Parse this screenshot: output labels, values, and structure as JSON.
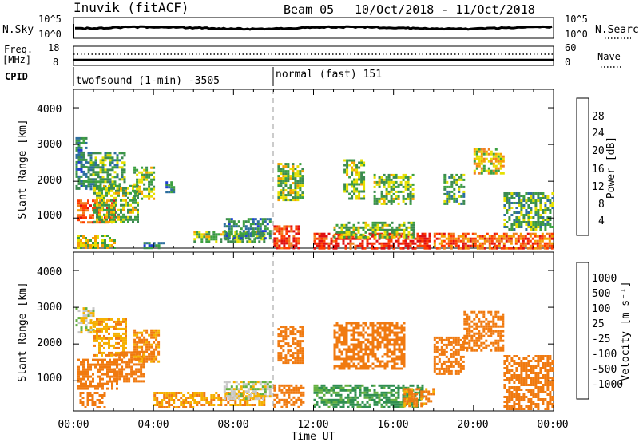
{
  "header": {
    "station": "Inuvik (fitACF)",
    "beam": "Beam 05",
    "date_range": "10/Oct/2018 - 11/Oct/2018"
  },
  "noise_panel": {
    "left_label": "N.Sky",
    "right_label": "N.Search",
    "left_ticks": [
      "10^5",
      "10^0"
    ],
    "right_ticks": [
      "10^5",
      "10^0"
    ]
  },
  "freq_panel": {
    "left_label_1": "Freq.",
    "left_label_2": "[MHz]",
    "right_label": "Nave",
    "left_ticks": [
      "18",
      "8"
    ],
    "right_ticks": [
      "60",
      "0"
    ]
  },
  "cpid": {
    "label": "CPID",
    "mode_1": "twofsound (1-min) -3505",
    "mode_2": "normal (fast) 151"
  },
  "axes": {
    "ylabel": "Slant Range [km]",
    "xlabel": "Time UT",
    "yticks": [
      "4000",
      "3000",
      "2000",
      "1000"
    ],
    "xticks": [
      "00:00",
      "04:00",
      "08:00",
      "12:00",
      "16:00",
      "20:00",
      "00:00"
    ]
  },
  "colorbars": {
    "power": {
      "label": "Power [dB]",
      "ticks": [
        "28",
        "24",
        "20",
        "16",
        "12",
        "8",
        "4"
      ],
      "colors": [
        "#e01010",
        "#ff3b00",
        "#f08020",
        "#f5a000",
        "#e6e000",
        "#3ca040",
        "#3c8a50",
        "#2c6e9e",
        "#1e3fd0",
        "#0000ff"
      ]
    },
    "velocity": {
      "label": "Velocity [m s⁻¹]",
      "ticks": [
        "1000",
        "500",
        "100",
        "25",
        "-25",
        "-100",
        "-500",
        "-1000"
      ],
      "colors": [
        "#2038c0",
        "#2f6a9e",
        "#2f8f50",
        "#64b040",
        "#c8c8c8",
        "#f5b000",
        "#f07a10",
        "#e04010",
        "#ff0000"
      ]
    }
  },
  "chart_data": [
    {
      "type": "heatmap",
      "title": "Power",
      "xlabel": "Time UT",
      "ylabel": "Slant Range [km]",
      "xlim_hours": [
        0,
        24
      ],
      "ylim_km": [
        180,
        4500
      ],
      "colorbar_label": "Power [dB]",
      "colorbar_range_db": [
        0,
        30
      ],
      "regions": [
        {
          "t0": 0.1,
          "t1": 0.6,
          "r0": 1800,
          "r1": 3200,
          "db": 10
        },
        {
          "t0": 0.2,
          "t1": 2.1,
          "r0": 850,
          "r1": 1500,
          "db": 24
        },
        {
          "t0": 0.7,
          "t1": 2.6,
          "r0": 1800,
          "r1": 2800,
          "db": 12
        },
        {
          "t0": 1.0,
          "t1": 3.2,
          "r0": 900,
          "r1": 1900,
          "db": 14
        },
        {
          "t0": 0.2,
          "t1": 2.0,
          "r0": 200,
          "r1": 550,
          "db": 16
        },
        {
          "t0": 3.0,
          "t1": 4.0,
          "r0": 1500,
          "r1": 2400,
          "db": 14
        },
        {
          "t0": 3.5,
          "t1": 4.5,
          "r0": 200,
          "r1": 350,
          "db": 10
        },
        {
          "t0": 4.6,
          "t1": 5.0,
          "r0": 1700,
          "r1": 2000,
          "db": 10
        },
        {
          "t0": 6.0,
          "t1": 9.5,
          "r0": 350,
          "r1": 650,
          "db": 14
        },
        {
          "t0": 7.5,
          "t1": 9.8,
          "r0": 450,
          "r1": 1000,
          "db": 10
        },
        {
          "t0": 10.0,
          "t1": 11.2,
          "r0": 200,
          "r1": 800,
          "db": 26
        },
        {
          "t0": 10.2,
          "t1": 11.5,
          "r0": 1500,
          "r1": 2500,
          "db": 14
        },
        {
          "t0": 12.0,
          "t1": 17.8,
          "r0": 200,
          "r1": 600,
          "db": 28
        },
        {
          "t0": 13.0,
          "t1": 17.0,
          "r0": 500,
          "r1": 900,
          "db": 14
        },
        {
          "t0": 13.5,
          "t1": 14.5,
          "r0": 1500,
          "r1": 2600,
          "db": 14
        },
        {
          "t0": 15.0,
          "t1": 17.0,
          "r0": 1400,
          "r1": 2200,
          "db": 14
        },
        {
          "t0": 18.0,
          "t1": 23.9,
          "r0": 200,
          "r1": 600,
          "db": 24
        },
        {
          "t0": 18.5,
          "t1": 19.5,
          "r0": 1400,
          "r1": 2200,
          "db": 12
        },
        {
          "t0": 20.0,
          "t1": 21.5,
          "r0": 2200,
          "r1": 2900,
          "db": 18
        },
        {
          "t0": 21.5,
          "t1": 23.9,
          "r0": 700,
          "r1": 1700,
          "db": 12
        }
      ]
    },
    {
      "type": "heatmap",
      "title": "Velocity",
      "xlabel": "Time UT",
      "ylabel": "Slant Range [km]",
      "xlim_hours": [
        0,
        24
      ],
      "ylim_km": [
        180,
        4500
      ],
      "colorbar_label": "Velocity [m s⁻¹]",
      "regions": [
        {
          "t0": 0.1,
          "t1": 1.0,
          "r0": 2300,
          "r1": 3000,
          "v": 0
        },
        {
          "t0": 0.2,
          "t1": 2.2,
          "r0": 800,
          "r1": 1600,
          "v": -150
        },
        {
          "t0": 0.3,
          "t1": 1.6,
          "r0": 250,
          "r1": 700,
          "v": -300
        },
        {
          "t0": 1.0,
          "t1": 2.6,
          "r0": 1700,
          "r1": 2700,
          "v": -80
        },
        {
          "t0": 2.0,
          "t1": 3.5,
          "r0": 1000,
          "r1": 1800,
          "v": -200
        },
        {
          "t0": 3.0,
          "t1": 4.2,
          "r0": 1500,
          "r1": 2400,
          "v": -120
        },
        {
          "t0": 4.0,
          "t1": 6.0,
          "r0": 300,
          "r1": 700,
          "v": -100
        },
        {
          "t0": 6.0,
          "t1": 9.5,
          "r0": 350,
          "r1": 700,
          "v": -90
        },
        {
          "t0": 7.5,
          "t1": 9.8,
          "r0": 500,
          "r1": 1000,
          "v": 0
        },
        {
          "t0": 10.0,
          "t1": 11.5,
          "r0": 250,
          "r1": 900,
          "v": -250
        },
        {
          "t0": 10.2,
          "t1": 11.5,
          "r0": 1500,
          "r1": 2500,
          "v": -180
        },
        {
          "t0": 12.0,
          "t1": 17.5,
          "r0": 250,
          "r1": 900,
          "v": 120
        },
        {
          "t0": 13.0,
          "t1": 16.5,
          "r0": 1300,
          "r1": 2600,
          "v": -150
        },
        {
          "t0": 16.5,
          "t1": 18.0,
          "r0": 300,
          "r1": 800,
          "v": -120
        },
        {
          "t0": 18.0,
          "t1": 19.5,
          "r0": 1200,
          "r1": 2200,
          "v": -200
        },
        {
          "t0": 19.5,
          "t1": 21.5,
          "r0": 1800,
          "r1": 2900,
          "v": -300
        },
        {
          "t0": 21.5,
          "t1": 23.9,
          "r0": 250,
          "r1": 1700,
          "v": -250
        }
      ]
    }
  ]
}
